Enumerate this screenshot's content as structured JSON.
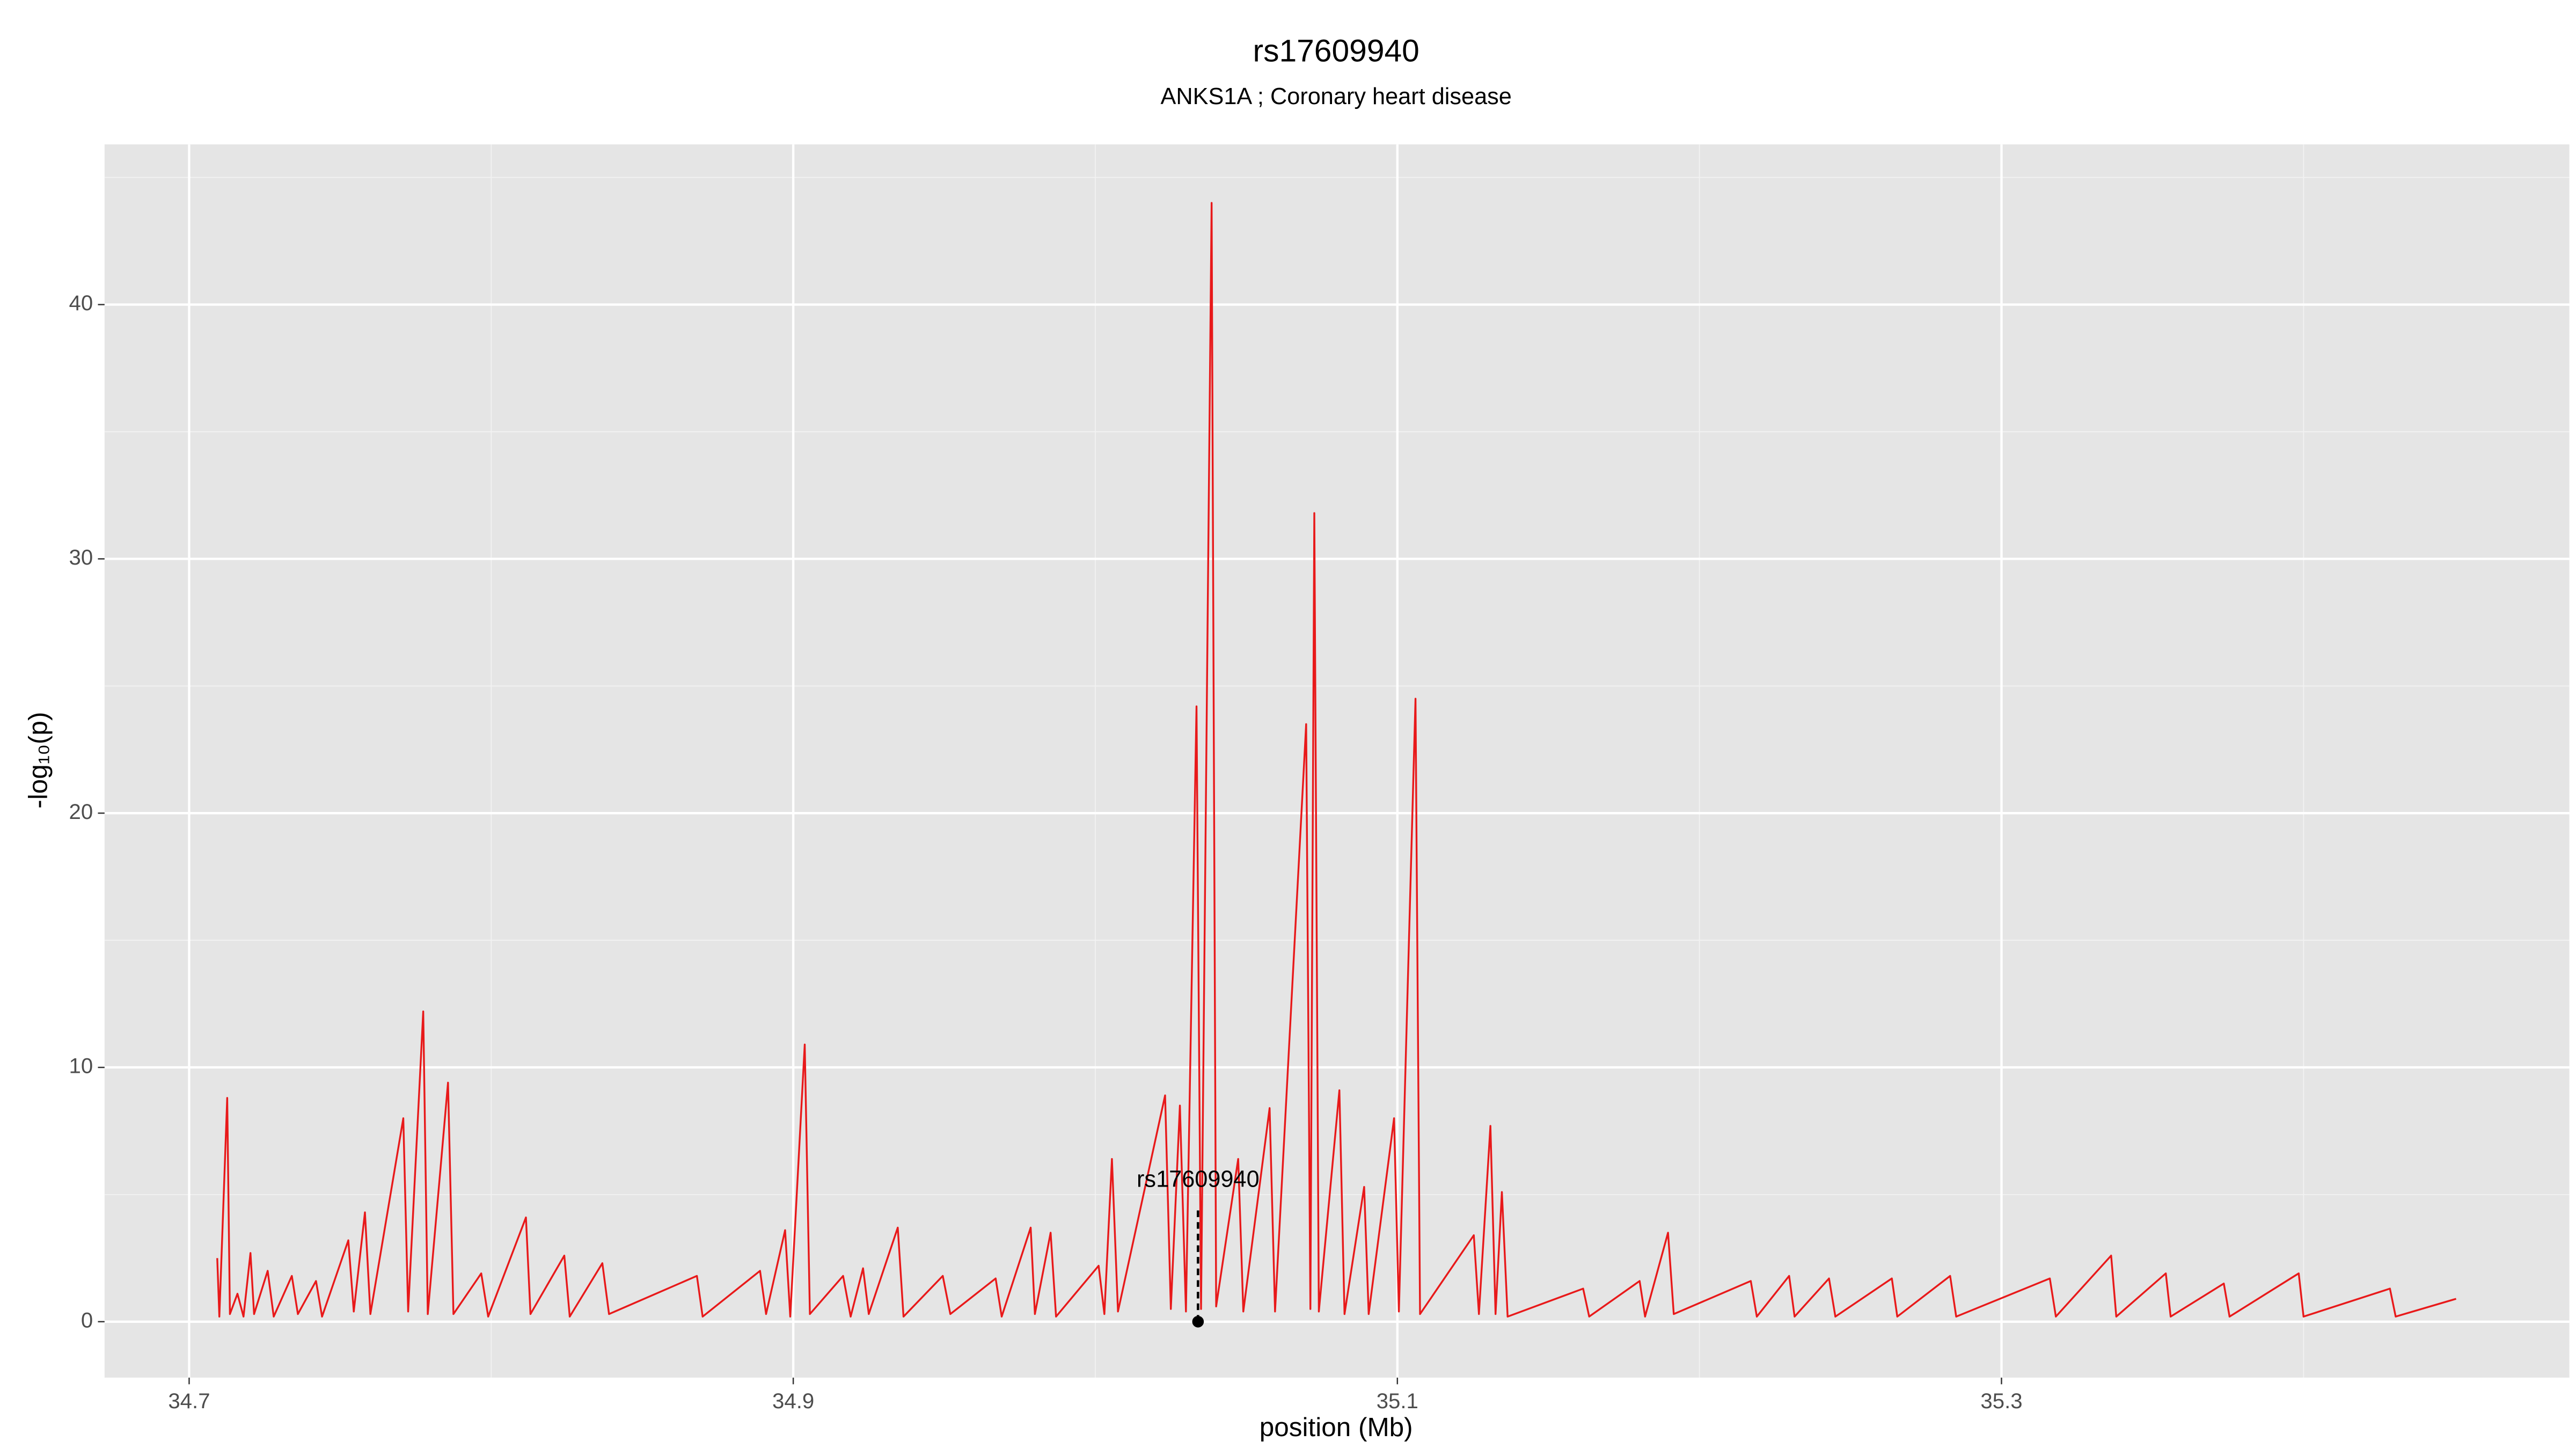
{
  "chart_data": {
    "type": "line",
    "title": "rs17609940",
    "subtitle": "ANKS1A ; Coronary heart disease",
    "x_label": "position (Mb)",
    "y_label": "-log₁₀(p)",
    "xlim": [
      34.672,
      35.488
    ],
    "ylim": [
      -2.2,
      46.3
    ],
    "xticks": [
      34.7,
      34.9,
      35.1,
      35.3
    ],
    "yticks": [
      0,
      10,
      20,
      30,
      40
    ],
    "x_minor_grid": [
      34.8,
      35.0,
      35.2,
      35.4
    ],
    "y_minor_grid": [
      5,
      15,
      25,
      35,
      45
    ],
    "grid": true,
    "background": "#e5e5e5",
    "series": [
      {
        "color": "#e8191a",
        "x": [
          34.7093,
          34.71,
          34.7126,
          34.7135,
          34.716,
          34.718,
          34.7203,
          34.7215,
          34.726,
          34.728,
          34.734,
          34.736,
          34.742,
          34.744,
          34.7527,
          34.7545,
          34.7582,
          34.76,
          34.7709,
          34.7725,
          34.7775,
          34.779,
          34.7857,
          34.7875,
          34.7967,
          34.799,
          34.8115,
          34.813,
          34.8242,
          34.826,
          34.8368,
          34.839,
          34.8681,
          34.87,
          34.889,
          34.891,
          34.8973,
          34.899,
          34.9038,
          34.9055,
          34.9165,
          34.919,
          34.9231,
          34.925,
          34.9346,
          34.9365,
          34.9495,
          34.952,
          34.967,
          34.969,
          34.9786,
          34.98,
          34.9852,
          34.987,
          35.0011,
          35.003,
          35.0055,
          35.0075,
          35.0231,
          35.025,
          35.028,
          35.03,
          35.0335,
          35.035,
          35.0385,
          35.04,
          35.0473,
          35.049,
          35.0577,
          35.0595,
          35.0698,
          35.0712,
          35.0725,
          35.074,
          35.0808,
          35.0825,
          35.089,
          35.0905,
          35.0989,
          35.1005,
          35.106,
          35.1075,
          35.1253,
          35.127,
          35.1308,
          35.1325,
          35.1346,
          35.1365,
          35.1615,
          35.1635,
          35.1802,
          35.182,
          35.1896,
          35.1915,
          35.217,
          35.219,
          35.2297,
          35.2315,
          35.2429,
          35.245,
          35.2637,
          35.2655,
          35.283,
          35.285,
          35.316,
          35.318,
          35.3363,
          35.338,
          35.3544,
          35.356,
          35.3736,
          35.3755,
          35.3984,
          35.4,
          35.4286,
          35.4305,
          35.4505
        ],
        "values": [
          2.5,
          0.2,
          8.8,
          0.3,
          1.1,
          0.2,
          2.7,
          0.3,
          2.0,
          0.2,
          1.8,
          0.3,
          1.6,
          0.2,
          3.2,
          0.4,
          4.3,
          0.3,
          8.0,
          0.4,
          12.2,
          0.3,
          9.4,
          0.3,
          1.9,
          0.2,
          4.1,
          0.3,
          2.6,
          0.2,
          2.3,
          0.3,
          1.8,
          0.2,
          2.0,
          0.3,
          3.6,
          0.2,
          10.9,
          0.3,
          1.8,
          0.2,
          2.1,
          0.3,
          3.7,
          0.2,
          1.8,
          0.3,
          1.7,
          0.2,
          3.7,
          0.3,
          3.5,
          0.2,
          2.2,
          0.3,
          6.4,
          0.4,
          8.9,
          0.5,
          8.5,
          0.4,
          24.2,
          0.5,
          44.0,
          0.6,
          6.4,
          0.4,
          8.4,
          0.4,
          23.5,
          0.5,
          31.8,
          0.4,
          9.1,
          0.3,
          5.3,
          0.3,
          8.0,
          0.4,
          24.5,
          0.3,
          3.4,
          0.3,
          7.7,
          0.3,
          5.1,
          0.2,
          1.3,
          0.2,
          1.6,
          0.2,
          3.5,
          0.3,
          1.6,
          0.2,
          1.8,
          0.2,
          1.7,
          0.2,
          1.7,
          0.2,
          1.8,
          0.2,
          1.7,
          0.2,
          2.6,
          0.2,
          1.9,
          0.2,
          1.5,
          0.2,
          1.9,
          0.2,
          1.3,
          0.2,
          0.9
        ]
      }
    ],
    "annotations": [
      {
        "text": "rs17609940",
        "x": 35.034,
        "y": 0,
        "line_top": 4.5
      }
    ]
  }
}
